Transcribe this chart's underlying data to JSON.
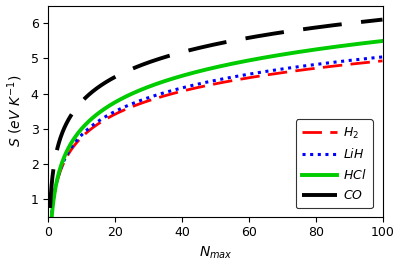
{
  "xlabel": "$N_{max}$",
  "ylabel": "$S\\ (eV\\ K^{-1})$",
  "xlim": [
    0,
    100
  ],
  "ylim": [
    0.5,
    6.5
  ],
  "yticks": [
    1,
    2,
    3,
    4,
    5,
    6
  ],
  "xticks": [
    0,
    20,
    40,
    60,
    80,
    100
  ],
  "curves": {
    "H2": {
      "a": 0.6,
      "b": 0.94,
      "color": "#ff0000",
      "ls": "--",
      "lw": 2.0,
      "label": "$H_2$",
      "dashes": [
        7,
        3
      ]
    },
    "LiH": {
      "a": 0.62,
      "b": 0.96,
      "color": "#0000ff",
      "ls": ":",
      "lw": 2.2,
      "label": "$LiH$",
      "dashes": null
    },
    "HCl": {
      "a": 0.52,
      "b": 1.08,
      "color": "#00cc00",
      "ls": "-",
      "lw": 2.8,
      "label": "$HCl$",
      "dashes": null
    },
    "CO": {
      "a": 1.45,
      "b": 1.01,
      "color": "#000000",
      "ls": "--",
      "lw": 2.8,
      "label": "$CO$",
      "dashes": [
        10,
        5
      ]
    }
  },
  "background_color": "#ffffff",
  "legend_fontsize": 9,
  "tick_fontsize": 9,
  "label_fontsize": 10
}
